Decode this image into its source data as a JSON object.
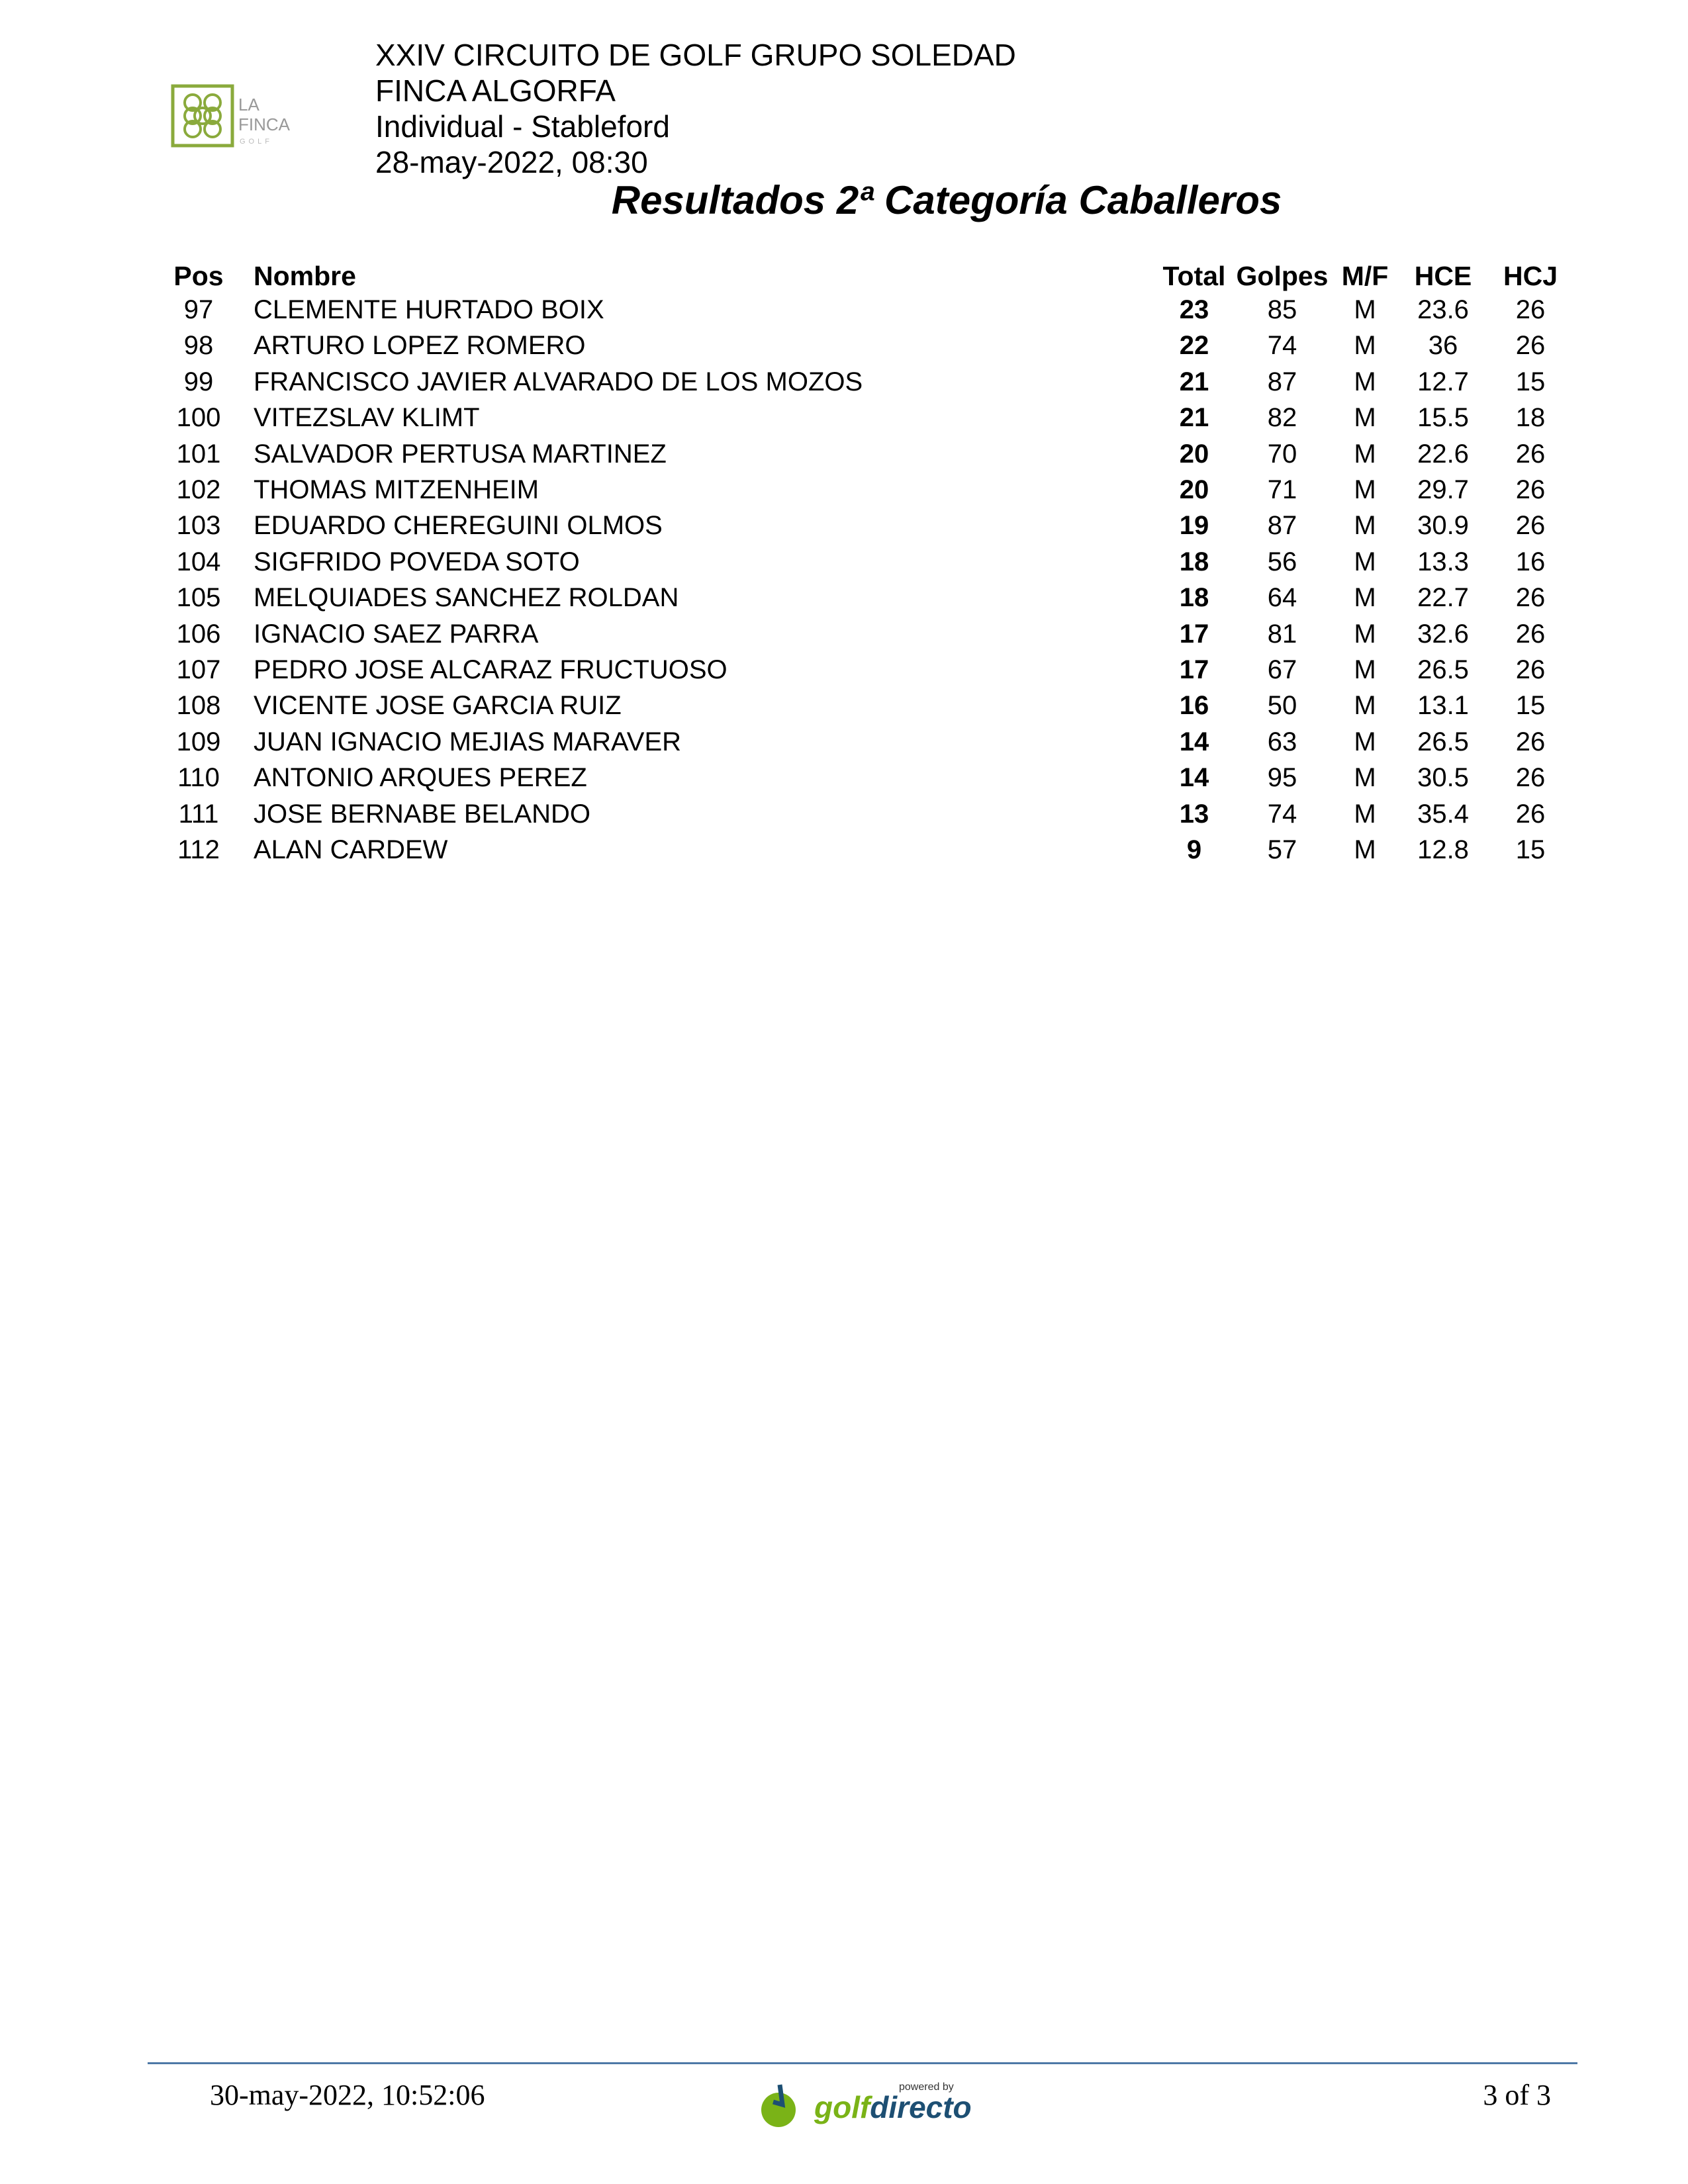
{
  "header": {
    "logo_text": "LA FINCA GOLF",
    "line1": "XXIV CIRCUITO DE GOLF GRUPO SOLEDAD",
    "line2": "FINCA ALGORFA",
    "line3": "Individual - Stableford",
    "line4": "28-may-2022, 08:30"
  },
  "title": "Resultados 2ª Categoría Caballeros",
  "table": {
    "columns": {
      "pos": "Pos",
      "nombre": "Nombre",
      "total": "Total",
      "golpes": "Golpes",
      "mf": "M/F",
      "hce": "HCE",
      "hcj": "HCJ"
    },
    "rows": [
      {
        "pos": "97",
        "nombre": "CLEMENTE HURTADO BOIX",
        "total": "23",
        "golpes": "85",
        "mf": "M",
        "hce": "23.6",
        "hcj": "26"
      },
      {
        "pos": "98",
        "nombre": "ARTURO LOPEZ ROMERO",
        "total": "22",
        "golpes": "74",
        "mf": "M",
        "hce": "36",
        "hcj": "26"
      },
      {
        "pos": "99",
        "nombre": "FRANCISCO JAVIER ALVARADO DE LOS MOZOS",
        "total": "21",
        "golpes": "87",
        "mf": "M",
        "hce": "12.7",
        "hcj": "15"
      },
      {
        "pos": "100",
        "nombre": "VITEZSLAV KLIMT",
        "total": "21",
        "golpes": "82",
        "mf": "M",
        "hce": "15.5",
        "hcj": "18"
      },
      {
        "pos": "101",
        "nombre": "SALVADOR PERTUSA MARTINEZ",
        "total": "20",
        "golpes": "70",
        "mf": "M",
        "hce": "22.6",
        "hcj": "26"
      },
      {
        "pos": "102",
        "nombre": "THOMAS MITZENHEIM",
        "total": "20",
        "golpes": "71",
        "mf": "M",
        "hce": "29.7",
        "hcj": "26"
      },
      {
        "pos": "103",
        "nombre": "EDUARDO CHEREGUINI OLMOS",
        "total": "19",
        "golpes": "87",
        "mf": "M",
        "hce": "30.9",
        "hcj": "26"
      },
      {
        "pos": "104",
        "nombre": "SIGFRIDO POVEDA SOTO",
        "total": "18",
        "golpes": "56",
        "mf": "M",
        "hce": "13.3",
        "hcj": "16"
      },
      {
        "pos": "105",
        "nombre": "MELQUIADES SANCHEZ ROLDAN",
        "total": "18",
        "golpes": "64",
        "mf": "M",
        "hce": "22.7",
        "hcj": "26"
      },
      {
        "pos": "106",
        "nombre": "IGNACIO SAEZ PARRA",
        "total": "17",
        "golpes": "81",
        "mf": "M",
        "hce": "32.6",
        "hcj": "26"
      },
      {
        "pos": "107",
        "nombre": "PEDRO JOSE ALCARAZ FRUCTUOSO",
        "total": "17",
        "golpes": "67",
        "mf": "M",
        "hce": "26.5",
        "hcj": "26"
      },
      {
        "pos": "108",
        "nombre": "VICENTE JOSE GARCIA RUIZ",
        "total": "16",
        "golpes": "50",
        "mf": "M",
        "hce": "13.1",
        "hcj": "15"
      },
      {
        "pos": "109",
        "nombre": "JUAN IGNACIO MEJIAS MARAVER",
        "total": "14",
        "golpes": "63",
        "mf": "M",
        "hce": "26.5",
        "hcj": "26"
      },
      {
        "pos": "110",
        "nombre": "ANTONIO ARQUES PEREZ",
        "total": "14",
        "golpes": "95",
        "mf": "M",
        "hce": "30.5",
        "hcj": "26"
      },
      {
        "pos": "111",
        "nombre": "JOSE BERNABE BELANDO",
        "total": "13",
        "golpes": "74",
        "mf": "M",
        "hce": "35.4",
        "hcj": "26"
      },
      {
        "pos": "112",
        "nombre": "ALAN CARDEW",
        "total": "9",
        "golpes": "57",
        "mf": "M",
        "hce": "12.8",
        "hcj": "15"
      }
    ]
  },
  "footer": {
    "printed": "30-may-2022, 10:52:06",
    "brand_text": "powered by golfdirecto",
    "page": "3 of 3"
  },
  "colors": {
    "logo_green": "#8aaa3c",
    "footer_line": "#4e79a7",
    "brand_green": "#7ab317",
    "brand_blue": "#1d4f73"
  }
}
